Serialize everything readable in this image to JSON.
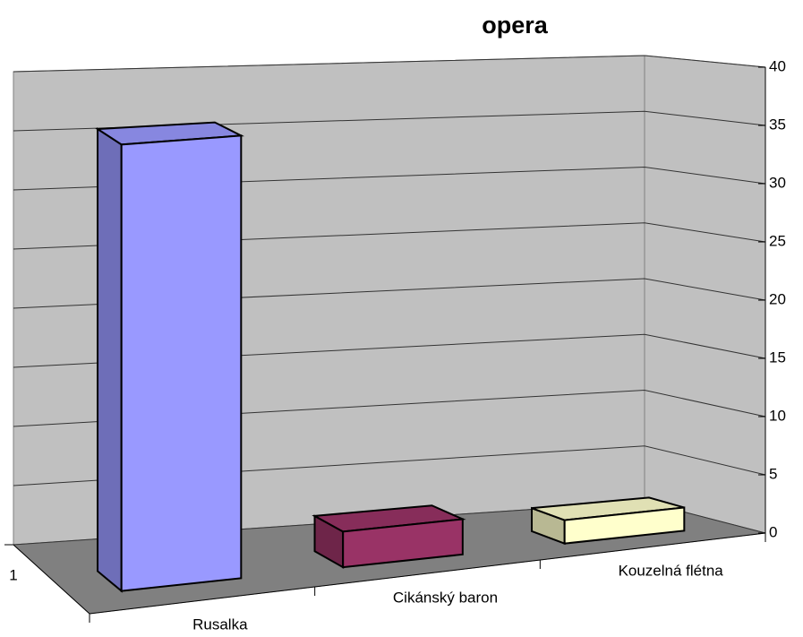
{
  "chart_data": {
    "type": "bar3d",
    "title": "opera",
    "categories": [
      "Rusalka",
      "Cikánský baron",
      "Kouzelná flétna"
    ],
    "series_labels": [
      "1"
    ],
    "values": [
      37,
      3,
      2
    ],
    "colors": [
      "#9999ff",
      "#993366",
      "#ffffcc"
    ],
    "ylim": [
      0,
      40
    ],
    "yticks": [
      0,
      5,
      10,
      15,
      20,
      25,
      30,
      35,
      40
    ],
    "grid": true
  }
}
